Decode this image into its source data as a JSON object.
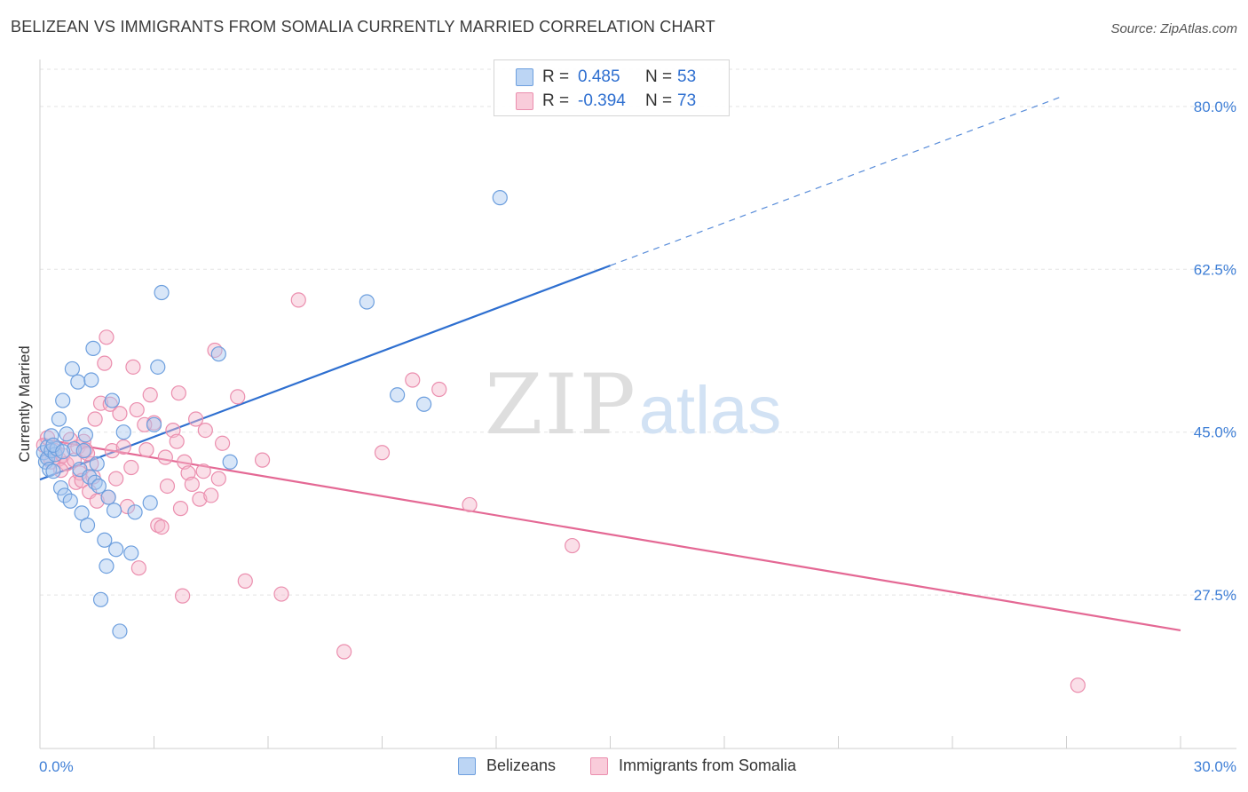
{
  "header": {
    "title": "BELIZEAN VS IMMIGRANTS FROM SOMALIA CURRENTLY MARRIED CORRELATION CHART",
    "source": "Source: ZipAtlas.com"
  },
  "watermark": {
    "zip": "ZIP",
    "atlas": "atlas"
  },
  "legend_top": [
    {
      "r_label": "R =",
      "r_value": "0.485",
      "n_label": "N =",
      "n_value": "53",
      "color": "#a9c8f0"
    },
    {
      "r_label": "R =",
      "r_value": "-0.394",
      "n_label": "N =",
      "n_value": "73",
      "color": "#f5b8cc"
    }
  ],
  "legend_bottom": [
    {
      "label": "Belizeans",
      "color": "#a9c8f0"
    },
    {
      "label": "Immigrants from Somalia",
      "color": "#f5b8cc"
    }
  ],
  "colors": {
    "blue_fill": "#a9c8f0",
    "blue_stroke": "#6d9fde",
    "blue_line": "#2e6fd0",
    "pink_fill": "#f5b8cc",
    "pink_stroke": "#eb8eae",
    "pink_line": "#e46894",
    "tick_label": "#3f7fd6",
    "grid": "#e3e3e3"
  },
  "chart_data": {
    "type": "scatter",
    "title": "BELIZEAN VS IMMIGRANTS FROM SOMALIA CURRENTLY MARRIED CORRELATION CHART",
    "xlabel": "",
    "ylabel": "Currently Married",
    "xlim": [
      0,
      30
    ],
    "ylim": [
      11,
      84
    ],
    "x_tick_labels": [
      "0.0%",
      "30.0%"
    ],
    "y_ticks": [
      27.5,
      45.0,
      62.5,
      80.0
    ],
    "y_tick_labels": [
      "27.5%",
      "45.0%",
      "62.5%",
      "80.0%"
    ],
    "grid": true,
    "legend_position": "top-center",
    "series": [
      {
        "name": "Belizeans",
        "r": 0.485,
        "n": 53,
        "trend": {
          "x0": 0.0,
          "y0": 39.9,
          "x1": 15.0,
          "y1": 62.9,
          "dashed_to_x": 26.9,
          "dashed_to_y": 81.1
        },
        "points": [
          [
            0.1,
            42.8
          ],
          [
            0.15,
            41.8
          ],
          [
            0.2,
            42.2
          ],
          [
            0.2,
            43.4
          ],
          [
            0.25,
            41.0
          ],
          [
            0.3,
            44.6
          ],
          [
            0.3,
            43.0
          ],
          [
            0.35,
            40.8
          ],
          [
            0.4,
            42.6
          ],
          [
            0.45,
            43.2
          ],
          [
            0.5,
            46.4
          ],
          [
            0.55,
            39.0
          ],
          [
            0.6,
            48.4
          ],
          [
            0.65,
            38.2
          ],
          [
            0.7,
            44.8
          ],
          [
            0.8,
            37.6
          ],
          [
            0.85,
            51.8
          ],
          [
            0.9,
            43.2
          ],
          [
            1.0,
            50.4
          ],
          [
            1.05,
            41.0
          ],
          [
            1.1,
            36.3
          ],
          [
            1.15,
            43.0
          ],
          [
            1.2,
            44.7
          ],
          [
            1.25,
            35.0
          ],
          [
            1.3,
            40.2
          ],
          [
            1.35,
            50.6
          ],
          [
            1.4,
            54.0
          ],
          [
            1.45,
            39.6
          ],
          [
            1.5,
            41.6
          ],
          [
            1.55,
            39.2
          ],
          [
            1.6,
            27.0
          ],
          [
            1.7,
            33.4
          ],
          [
            1.75,
            30.6
          ],
          [
            1.8,
            38.0
          ],
          [
            1.9,
            48.4
          ],
          [
            1.95,
            36.6
          ],
          [
            2.0,
            32.4
          ],
          [
            2.1,
            23.6
          ],
          [
            2.2,
            45.0
          ],
          [
            2.4,
            32.0
          ],
          [
            2.5,
            36.4
          ],
          [
            2.9,
            37.4
          ],
          [
            3.0,
            45.8
          ],
          [
            3.1,
            52.0
          ],
          [
            3.2,
            60.0
          ],
          [
            4.7,
            53.4
          ],
          [
            5.0,
            41.8
          ],
          [
            8.6,
            59.0
          ],
          [
            9.4,
            49.0
          ],
          [
            10.1,
            48.0
          ],
          [
            12.1,
            70.2
          ],
          [
            0.35,
            43.6
          ],
          [
            0.6,
            42.9
          ]
        ]
      },
      {
        "name": "Immigrants from Somalia",
        "r": -0.394,
        "n": 73,
        "trend": {
          "x0": 0.0,
          "y0": 44.3,
          "x1": 30.0,
          "y1": 23.7
        },
        "points": [
          [
            0.1,
            43.6
          ],
          [
            0.2,
            44.4
          ],
          [
            0.25,
            42.3
          ],
          [
            0.3,
            41.8
          ],
          [
            0.4,
            43.0
          ],
          [
            0.5,
            42.1
          ],
          [
            0.6,
            42.5
          ],
          [
            0.7,
            41.6
          ],
          [
            0.8,
            44.2
          ],
          [
            0.9,
            42.0
          ],
          [
            0.95,
            39.6
          ],
          [
            1.0,
            43.4
          ],
          [
            1.05,
            40.6
          ],
          [
            1.1,
            39.8
          ],
          [
            1.15,
            44.0
          ],
          [
            1.2,
            43.1
          ],
          [
            1.3,
            38.6
          ],
          [
            1.35,
            41.6
          ],
          [
            1.4,
            40.2
          ],
          [
            1.45,
            46.4
          ],
          [
            1.5,
            37.6
          ],
          [
            1.6,
            48.1
          ],
          [
            1.7,
            52.4
          ],
          [
            1.75,
            55.2
          ],
          [
            1.8,
            38.0
          ],
          [
            1.85,
            48.0
          ],
          [
            1.9,
            43.0
          ],
          [
            2.0,
            40.0
          ],
          [
            2.1,
            47.0
          ],
          [
            2.2,
            43.4
          ],
          [
            2.3,
            37.0
          ],
          [
            2.4,
            41.2
          ],
          [
            2.45,
            52.0
          ],
          [
            2.55,
            47.4
          ],
          [
            2.6,
            30.4
          ],
          [
            2.8,
            43.1
          ],
          [
            2.9,
            49.0
          ],
          [
            3.0,
            46.0
          ],
          [
            3.1,
            35.0
          ],
          [
            3.2,
            34.8
          ],
          [
            3.3,
            42.3
          ],
          [
            3.35,
            39.2
          ],
          [
            3.5,
            45.2
          ],
          [
            3.6,
            44.0
          ],
          [
            3.65,
            49.2
          ],
          [
            3.7,
            36.8
          ],
          [
            3.75,
            27.4
          ],
          [
            3.8,
            41.8
          ],
          [
            3.9,
            40.6
          ],
          [
            4.0,
            39.4
          ],
          [
            4.1,
            46.4
          ],
          [
            4.2,
            37.8
          ],
          [
            4.3,
            40.8
          ],
          [
            4.35,
            45.2
          ],
          [
            4.5,
            38.2
          ],
          [
            4.6,
            53.8
          ],
          [
            4.7,
            40.0
          ],
          [
            4.8,
            43.8
          ],
          [
            5.2,
            48.8
          ],
          [
            5.4,
            29.0
          ],
          [
            5.85,
            42.0
          ],
          [
            6.35,
            27.6
          ],
          [
            6.8,
            59.2
          ],
          [
            8.0,
            21.4
          ],
          [
            9.0,
            42.8
          ],
          [
            9.8,
            50.6
          ],
          [
            10.5,
            49.6
          ],
          [
            11.3,
            37.2
          ],
          [
            14.0,
            32.8
          ],
          [
            27.3,
            17.8
          ],
          [
            0.55,
            40.9
          ],
          [
            1.25,
            42.7
          ],
          [
            2.75,
            45.8
          ]
        ]
      }
    ]
  }
}
